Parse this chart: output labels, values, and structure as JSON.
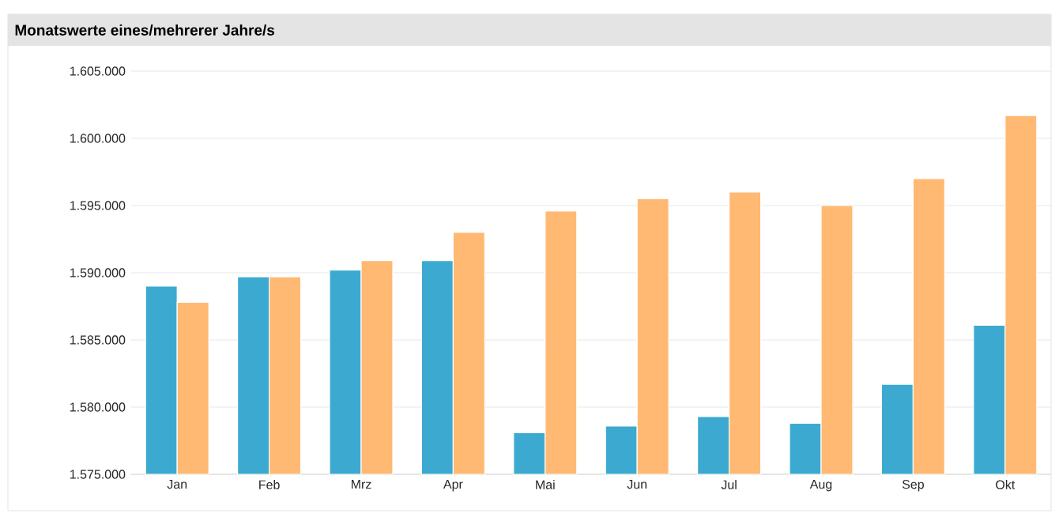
{
  "chart_data": {
    "type": "bar",
    "title": "Monatswerte eines/mehrerer Jahre/s",
    "categories": [
      "Jan",
      "Feb",
      "Mrz",
      "Apr",
      "Mai",
      "Jun",
      "Jul",
      "Aug",
      "Sep",
      "Okt"
    ],
    "series": [
      {
        "color": "#3caad0",
        "values": [
          1589000,
          1589700,
          1590200,
          1590900,
          1578100,
          1578600,
          1579300,
          1578800,
          1581700,
          1586100
        ]
      },
      {
        "color": "#ffb973",
        "values": [
          1587800,
          1589700,
          1590900,
          1593000,
          1594600,
          1595500,
          1596000,
          1595000,
          1597000,
          1601700
        ]
      }
    ],
    "ylim": [
      1575000,
      1605000
    ],
    "yticks": [
      {
        "value": 1575000,
        "label": "1.575.000"
      },
      {
        "value": 1580000,
        "label": "1.580.000"
      },
      {
        "value": 1585000,
        "label": "1.585.000"
      },
      {
        "value": 1590000,
        "label": "1.590.000"
      },
      {
        "value": 1595000,
        "label": "1.595.000"
      },
      {
        "value": 1600000,
        "label": "1.600.000"
      },
      {
        "value": 1605000,
        "label": "1.605.000"
      }
    ],
    "grid": "y"
  }
}
